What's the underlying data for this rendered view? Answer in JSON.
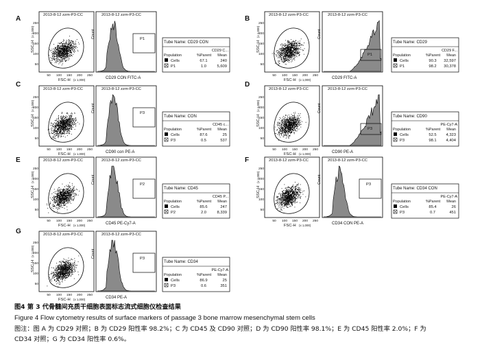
{
  "panels": [
    {
      "letter": "A",
      "scatter": {
        "header": "2013-8-12 zzm-P3-CC",
        "xlabel": "FSC-H",
        "xexp": "(x 1,000)",
        "ylabel": "SSC-H",
        "yexp": "(x 1,000)",
        "xticks": [
          "50",
          "100",
          "150",
          "200",
          "250"
        ],
        "yticks": [
          "50",
          "100",
          "150",
          "200",
          "250"
        ]
      },
      "histogram": {
        "header": "2013-8-12 zzm-P3-CC",
        "xlabel": "CD29 CON FITC-A",
        "ylabel": "Count",
        "gate": "P1",
        "shape": "left"
      },
      "table": {
        "tube": "Tube Name:  CD29 CON",
        "colhead": "CD29 C...",
        "h_pop": "Population",
        "h_par": "%Parent",
        "h_mean": "Mean",
        "rows": [
          {
            "name": "Cells",
            "parent": "67.1",
            "mean": "240"
          },
          {
            "name": "P1",
            "parent": "1.0",
            "mean": "5,609"
          }
        ]
      }
    },
    {
      "letter": "B",
      "scatter": {
        "header": "2013-8-12 zzm-P3-CC",
        "xlabel": "FSC-H",
        "xexp": "(x 1,000)",
        "ylabel": "SSC-H",
        "yexp": "(x 1,000)",
        "xticks": [
          "50",
          "100",
          "150",
          "200",
          "250"
        ],
        "yticks": [
          "50",
          "100",
          "150",
          "200",
          "250"
        ]
      },
      "histogram": {
        "header": "2013-8-12 zzm-P3-CC",
        "xlabel": "CD29 FITC-A",
        "ylabel": "Count",
        "gate": "P1",
        "shape": "right"
      },
      "table": {
        "tube": "Tube Name:  CD29",
        "colhead": "CD29 F...",
        "h_pop": "Population",
        "h_par": "%Parent",
        "h_mean": "Mean",
        "rows": [
          {
            "name": "Cells",
            "parent": "90.3",
            "mean": "32,597"
          },
          {
            "name": "P1",
            "parent": "98.2",
            "mean": "30,378"
          }
        ]
      }
    },
    {
      "letter": "C",
      "scatter": {
        "header": "2013-8-12 zzm-P3-CC",
        "xlabel": "FSC-H",
        "xexp": "(x 1,000)",
        "ylabel": "SSC-H",
        "yexp": "(x 1,000)",
        "xticks": [
          "50",
          "100",
          "150",
          "200",
          "250"
        ],
        "yticks": [
          "50",
          "100",
          "150",
          "200",
          "250"
        ]
      },
      "histogram": {
        "header": "2013-8-12 zzm-P3-CC",
        "xlabel": "CD90 con PE-A",
        "ylabel": "Count",
        "gate": "P3",
        "shape": "left"
      },
      "table": {
        "tube": "Tube Name:  CON",
        "colhead": "CD45 c...",
        "h_pop": "Population",
        "h_par": "%Parent",
        "h_mean": "Mean",
        "rows": [
          {
            "name": "Cells",
            "parent": "87.6",
            "mean": "25"
          },
          {
            "name": "P3",
            "parent": "0.5",
            "mean": "537"
          }
        ]
      }
    },
    {
      "letter": "D",
      "scatter": {
        "header": "2013-8-12 zzm-P3-CC",
        "xlabel": "FSC-H",
        "xexp": "(x 1,000)",
        "ylabel": "SSC-H",
        "yexp": "(x 1,000)",
        "xticks": [
          "50",
          "100",
          "150",
          "200",
          "250"
        ],
        "yticks": [
          "50",
          "100",
          "150",
          "200",
          "250"
        ]
      },
      "histogram": {
        "header": "2013-8-12 zzm-P3-CC",
        "xlabel": "CD90 PE-A",
        "ylabel": "Count",
        "gate": "P3",
        "shape": "right"
      },
      "table": {
        "tube": "Tube Name:  CD90",
        "colhead": "PE-Cy7-A",
        "h_pop": "Population",
        "h_par": "%Parent",
        "h_mean": "Mean",
        "rows": [
          {
            "name": "Cells",
            "parent": "52.5",
            "mean": "4,323"
          },
          {
            "name": "P3",
            "parent": "98.1",
            "mean": "4,404"
          }
        ]
      }
    },
    {
      "letter": "E",
      "scatter": {
        "header": "2013-8-12 zzm-P3-CC",
        "xlabel": "FSC-H",
        "xexp": "(x 1,000)",
        "ylabel": "SSC-H",
        "yexp": "(x 1,000)",
        "xticks": [
          "50",
          "100",
          "150",
          "200",
          "250"
        ],
        "yticks": [
          "50",
          "100",
          "150",
          "200",
          "250"
        ]
      },
      "histogram": {
        "header": "2013-8-12 zzm-P3-CC",
        "xlabel": "CD45 PE-Cy7-A",
        "ylabel": "Count",
        "gate": "P2",
        "shape": "left"
      },
      "table": {
        "tube": "Tube Name:  CD45",
        "colhead": "CD45 P...",
        "h_pop": "Population",
        "h_par": "%Parent",
        "h_mean": "Mean",
        "rows": [
          {
            "name": "Cells",
            "parent": "85.6",
            "mean": "247"
          },
          {
            "name": "P2",
            "parent": "2.0",
            "mean": "8,339"
          }
        ]
      }
    },
    {
      "letter": "F",
      "scatter": {
        "header": "2013-8-12 zzm-P3-CC",
        "xlabel": "FSC-H",
        "xexp": "(x 1,000)",
        "ylabel": "SSC-H",
        "yexp": "(x 1,000)",
        "xticks": [
          "50",
          "100",
          "150",
          "200",
          "250"
        ],
        "yticks": [
          "50",
          "100",
          "150",
          "200",
          "250"
        ]
      },
      "histogram": {
        "header": "2013-8-12 zzm-P3-CC",
        "xlabel": "CD34 CON PE-A",
        "ylabel": "Count",
        "gate": "P3",
        "shape": "left"
      },
      "table": {
        "tube": "Tube Name:  CD34 CON",
        "colhead": "PE-Cy7-A",
        "h_pop": "Population",
        "h_par": "%Parent",
        "h_mean": "Mean",
        "rows": [
          {
            "name": "Cells",
            "parent": "85.4",
            "mean": "26"
          },
          {
            "name": "P3",
            "parent": "0.7",
            "mean": "451"
          }
        ]
      }
    },
    {
      "letter": "G",
      "scatter": {
        "header": "2013-8-12 zzm-P3-CC",
        "xlabel": "FSC-H",
        "xexp": "(x 1,000)",
        "ylabel": "SSC-H",
        "yexp": "(x 1,000)",
        "xticks": [
          "50",
          "100",
          "150",
          "200",
          "250"
        ],
        "yticks": [
          "50",
          "100",
          "150",
          "200",
          "250"
        ]
      },
      "histogram": {
        "header": "2013-8-12 zzm-P3-CC",
        "xlabel": "CD34 PE-A",
        "ylabel": "Count",
        "gate": "P3",
        "shape": "left"
      },
      "table": {
        "tube": "Tube Name:  CD34",
        "colhead": "PE-Cy7-A",
        "h_pop": "Population",
        "h_par": "%Parent",
        "h_mean": "Mean",
        "rows": [
          {
            "name": "Cells",
            "parent": "86.9",
            "mean": "25"
          },
          {
            "name": "P3",
            "parent": "0.6",
            "mean": "351"
          }
        ]
      }
    }
  ],
  "caption": {
    "zh_title": "图4   第 3 代骨髓间充质干细胞表面标志流式细胞仪检查结果",
    "en_title": "Figure 4   Flow cytometry results of surface markers of passage 3 bone marrow mesenchymal stem cells",
    "note1": "图注：图 A 为 CD29 对照；B 为 CD29 阳性率 98.2%；C 为 CD45 及 CD90 对照；D 为 CD90 阳性率 98.1%；E 为 CD45 阳性率 2.0%；F 为",
    "note2": "CD34 对照；G 为 CD34 阳性率 0.6%。"
  },
  "colors": {
    "fill": "#8a8a8a",
    "ink": "#111111"
  }
}
